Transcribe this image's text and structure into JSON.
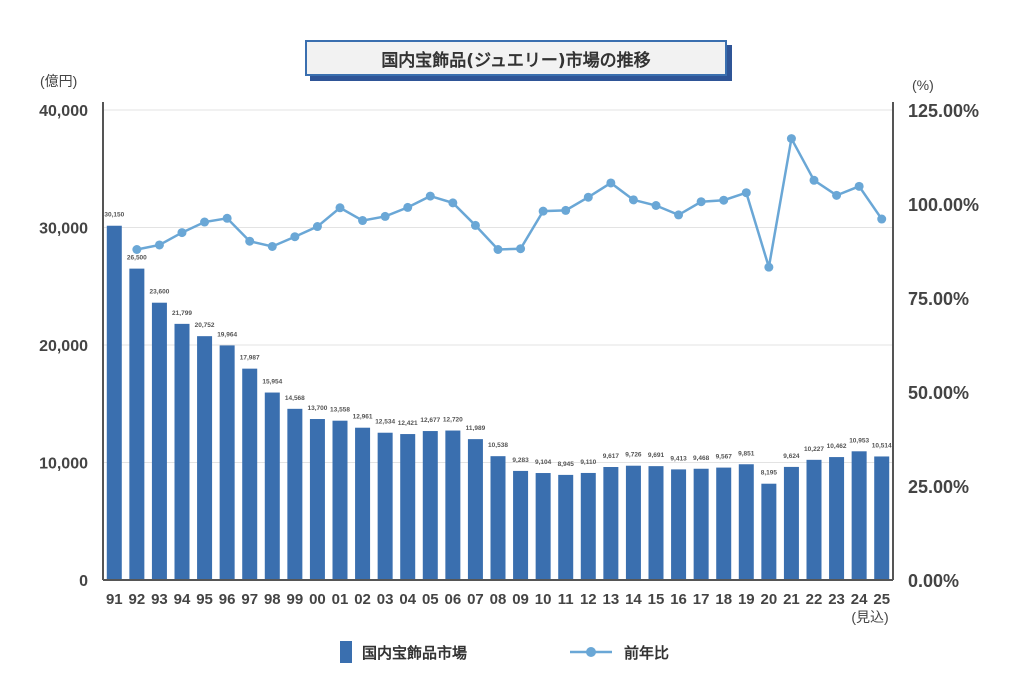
{
  "chart_data": {
    "type": "bar+line",
    "title": "国内宝飾品(ジュエリー)市場の推移",
    "categories": [
      "91",
      "92",
      "93",
      "94",
      "95",
      "96",
      "97",
      "98",
      "99",
      "00",
      "01",
      "02",
      "03",
      "04",
      "05",
      "06",
      "07",
      "08",
      "09",
      "10",
      "11",
      "12",
      "13",
      "14",
      "15",
      "16",
      "17",
      "18",
      "19",
      "20",
      "21",
      "22",
      "23",
      "24",
      "25"
    ],
    "x_note": "(見込)",
    "left_axis": {
      "unit_label": "(億円)",
      "range": [
        0,
        40000
      ],
      "ticks": [
        "0",
        "10,000",
        "20,000",
        "30,000",
        "40,000"
      ]
    },
    "right_axis": {
      "unit_label": "(%)",
      "range": [
        0,
        125
      ],
      "ticks": [
        "0.00%",
        "25.00%",
        "50.00%",
        "75.00%",
        "100.00%",
        "125.00%"
      ]
    },
    "grid": true,
    "legend_position": "bottom",
    "series": [
      {
        "name": "国内宝飾品市場",
        "type": "bar",
        "axis": "left",
        "color": "#3a6faf",
        "values": [
          30150,
          26500,
          23600,
          21799,
          20752,
          19964,
          17987,
          15954,
          14568,
          13700,
          13558,
          12961,
          12534,
          12421,
          12677,
          12720,
          11989,
          10538,
          9283,
          9104,
          8945,
          9110,
          9617,
          9726,
          9691,
          9413,
          9468,
          9567,
          9851,
          8195,
          9624,
          10227,
          10462,
          10953,
          10514
        ],
        "labels": [
          "30,150",
          "26,500",
          "23,600",
          "21,799",
          "20,752",
          "19,964",
          "17,987",
          "15,954",
          "14,568",
          "13,700",
          "13,558",
          "12,961",
          "12,534",
          "12,421",
          "12,677",
          "12,720",
          "11,989",
          "10,538",
          "9,283",
          "9,104",
          "8,945",
          "9,110",
          "9,617",
          "9,726",
          "9,691",
          "9,413",
          "9,468",
          "9,567",
          "9,851",
          "8,195",
          "9,624",
          "10,227",
          "10,462",
          "10,953",
          "10,514"
        ]
      },
      {
        "name": "前年比",
        "type": "line",
        "axis": "right",
        "color": "#6aa7d6",
        "values": [
          null,
          87.9,
          89.1,
          92.4,
          95.2,
          96.2,
          90.1,
          88.7,
          91.3,
          94.0,
          99.0,
          95.6,
          96.7,
          99.1,
          102.1,
          100.3,
          94.3,
          87.9,
          88.1,
          98.1,
          98.3,
          101.8,
          105.6,
          101.1,
          99.6,
          97.1,
          100.6,
          101.0,
          103.0,
          83.2,
          117.4,
          106.3,
          102.3,
          104.7,
          96.0
        ]
      }
    ]
  }
}
